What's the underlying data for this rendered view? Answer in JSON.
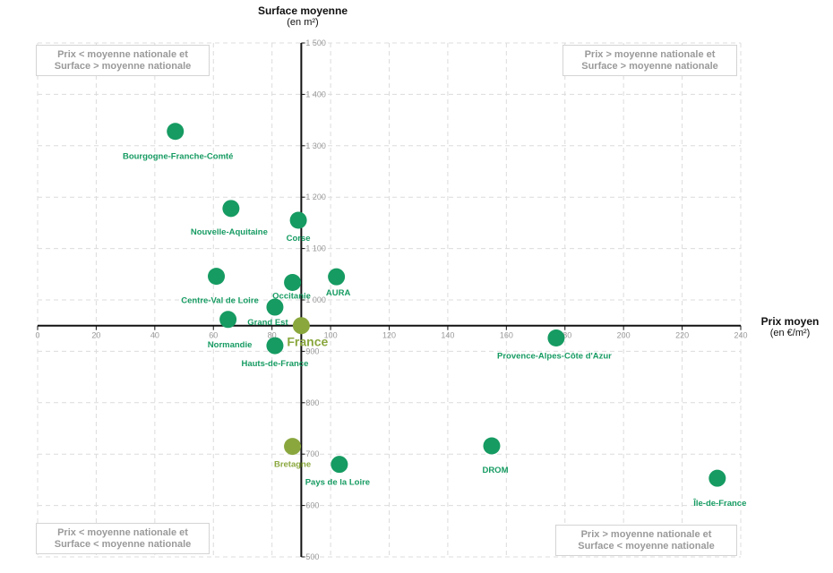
{
  "chart_data": {
    "type": "scatter",
    "title": "",
    "xlabel": "Prix moyen",
    "xunit": "(en €/m²)",
    "ylabel": "Surface moyenne",
    "yunit": "(en m²)",
    "xlim": [
      0,
      240
    ],
    "ylim": [
      500,
      1500
    ],
    "xticks": [
      "0",
      "20",
      "40",
      "60",
      "80",
      "100",
      "120",
      "140",
      "160",
      "180",
      "200",
      "220",
      "240"
    ],
    "yticks": [
      "500",
      "600",
      "700",
      "800",
      "900",
      "1 000",
      "1 100",
      "1 200",
      "1 300",
      "1 400",
      "1 500"
    ],
    "origin": {
      "x": 90,
      "y": 950
    },
    "grid": true,
    "colors": {
      "region": "#169b62",
      "highlight": "#8aa73e",
      "axis": "#111111",
      "grid": "#dcdcdc",
      "quadrant_text": "#9a9a9a"
    },
    "quadrants": [
      {
        "text": "Prix < moyenne nationale et\nSurface > moyenne nationale",
        "position": "top-left"
      },
      {
        "text": "Prix > moyenne nationale et\nSurface > moyenne nationale",
        "position": "top-right"
      },
      {
        "text": "Prix < moyenne nationale et\nSurface < moyenne nationale",
        "position": "bottom-left"
      },
      {
        "text": "Prix > moyenne nationale et\nSurface < moyenne nationale",
        "position": "bottom-right"
      }
    ],
    "points": [
      {
        "label": "Bourgogne-Franche-Comté",
        "x": 47,
        "y": 1328,
        "kind": "region"
      },
      {
        "label": "Nouvelle-Aquitaine",
        "x": 66,
        "y": 1178,
        "kind": "region"
      },
      {
        "label": "Corse",
        "x": 89,
        "y": 1155,
        "kind": "region"
      },
      {
        "label": "Centre-Val de Loire",
        "x": 61,
        "y": 1046,
        "kind": "region"
      },
      {
        "label": "Occitanie",
        "x": 87,
        "y": 1034,
        "kind": "region"
      },
      {
        "label": "AURA",
        "x": 102,
        "y": 1045,
        "kind": "region"
      },
      {
        "label": "Grand Est",
        "x": 81,
        "y": 986,
        "kind": "region"
      },
      {
        "label": "Normandie",
        "x": 65,
        "y": 962,
        "kind": "region"
      },
      {
        "label": "France",
        "x": 90,
        "y": 950,
        "kind": "highlight"
      },
      {
        "label": "Hauts-de-France",
        "x": 81,
        "y": 911,
        "kind": "region"
      },
      {
        "label": "Provence-Alpes-Côte d'Azur",
        "x": 177,
        "y": 926,
        "kind": "region"
      },
      {
        "label": "Bretagne",
        "x": 87,
        "y": 715,
        "kind": "highlight"
      },
      {
        "label": "Pays de la Loire",
        "x": 103,
        "y": 680,
        "kind": "region"
      },
      {
        "label": "DROM",
        "x": 155,
        "y": 716,
        "kind": "region"
      },
      {
        "label": "Île-de-France",
        "x": 232,
        "y": 653,
        "kind": "region"
      }
    ]
  }
}
